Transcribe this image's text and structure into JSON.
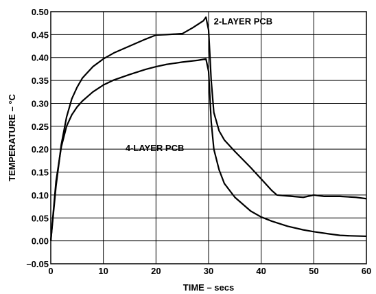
{
  "chart_data": {
    "type": "line",
    "xlabel": "TIME – secs",
    "ylabel": "TEMPERATURE – °C",
    "xlim": [
      0,
      60
    ],
    "ylim": [
      -0.05,
      0.5
    ],
    "x_ticks": [
      0,
      10,
      20,
      30,
      40,
      50,
      60
    ],
    "y_ticks": [
      -0.05,
      0.0,
      0.05,
      0.1,
      0.15,
      0.2,
      0.25,
      0.3,
      0.35,
      0.4,
      0.45,
      0.5
    ],
    "y_tick_labels": [
      "–0.05",
      "0.00",
      "0.05",
      "0.10",
      "0.15",
      "0.20",
      "0.25",
      "0.30",
      "0.35",
      "0.40",
      "0.45",
      "0.50"
    ],
    "grid": true,
    "series": [
      {
        "name": "2-LAYER PCB",
        "x": [
          0,
          1,
          2,
          3,
          4,
          5,
          6,
          8,
          10,
          12,
          15,
          18,
          20,
          22,
          25,
          27,
          29,
          29.5,
          30,
          30.5,
          31,
          32,
          33,
          35,
          38,
          40,
          42,
          43,
          45,
          48,
          50,
          52,
          55,
          58,
          60
        ],
        "y": [
          0,
          0.12,
          0.21,
          0.27,
          0.31,
          0.335,
          0.355,
          0.38,
          0.397,
          0.41,
          0.425,
          0.44,
          0.449,
          0.45,
          0.452,
          0.465,
          0.48,
          0.488,
          0.46,
          0.35,
          0.28,
          0.24,
          0.22,
          0.195,
          0.16,
          0.135,
          0.11,
          0.1,
          0.098,
          0.095,
          0.1,
          0.097,
          0.097,
          0.095,
          0.092
        ]
      },
      {
        "name": "4-LAYER PCB",
        "x": [
          0,
          1,
          2,
          3,
          4,
          5,
          6,
          8,
          10,
          12,
          15,
          18,
          20,
          22,
          25,
          28,
          29.5,
          30,
          30.5,
          31,
          32,
          33,
          35,
          38,
          40,
          42,
          45,
          48,
          50,
          53,
          55,
          57,
          60
        ],
        "y": [
          0,
          0.13,
          0.205,
          0.25,
          0.275,
          0.292,
          0.305,
          0.325,
          0.34,
          0.351,
          0.363,
          0.374,
          0.38,
          0.385,
          0.39,
          0.394,
          0.397,
          0.37,
          0.26,
          0.2,
          0.155,
          0.125,
          0.095,
          0.065,
          0.052,
          0.043,
          0.032,
          0.024,
          0.02,
          0.015,
          0.012,
          0.011,
          0.01
        ]
      }
    ],
    "annotations": [
      {
        "text": "2-LAYER PCB",
        "x": 31,
        "y": 0.472
      },
      {
        "text": "4-LAYER PCB",
        "x": 14.2,
        "y": 0.196
      }
    ]
  }
}
